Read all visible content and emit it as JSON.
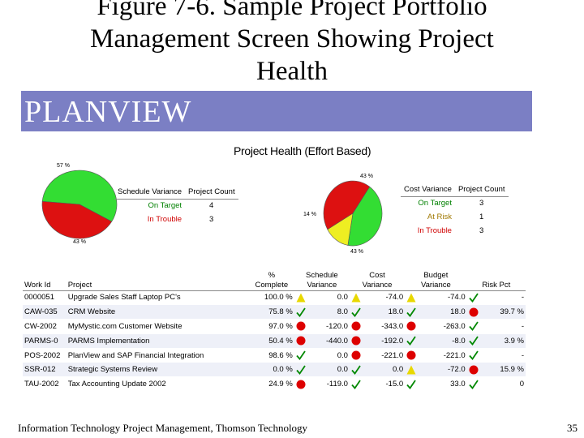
{
  "slide": {
    "title_line1": "Figure 7-6. Sample Project Portfolio",
    "title_line2": "Management Screen Showing Project",
    "title_line3": "Health"
  },
  "banner": {
    "logo_text": "PLANVIEW",
    "color": "#7b7fc4"
  },
  "health": {
    "title": "Project Health (Effort Based)",
    "left_pie": {
      "pct_green": "57 %",
      "pct_red": "43 %",
      "header_variance": "Schedule Variance",
      "header_count": "Project Count",
      "rows": [
        {
          "label": "On Target",
          "count": "4"
        },
        {
          "label": "In Trouble",
          "count": "3"
        }
      ]
    },
    "right_pie": {
      "pct_green": "43 %",
      "pct_yellow": "14 %",
      "pct_red": "43 %",
      "header_variance": "Cost Variance",
      "header_count": "Project Count",
      "rows": [
        {
          "label": "On Target",
          "count": "3"
        },
        {
          "label": "At Risk",
          "count": "1"
        },
        {
          "label": "In Trouble",
          "count": "3"
        }
      ]
    }
  },
  "chart_data": [
    {
      "type": "pie",
      "title": "Schedule Variance",
      "categories": [
        "On Target",
        "In Trouble"
      ],
      "values": [
        57,
        43
      ],
      "colors": [
        "#33dd33",
        "#dd1111"
      ]
    },
    {
      "type": "pie",
      "title": "Cost Variance",
      "categories": [
        "On Target",
        "At Risk",
        "In Trouble"
      ],
      "values": [
        43,
        14,
        43
      ],
      "colors": [
        "#33dd33",
        "#eeee22",
        "#dd1111"
      ]
    }
  ],
  "table": {
    "headers": {
      "work_id": "Work Id",
      "project": "Project",
      "pct_complete_1": "%",
      "pct_complete_2": "Complete",
      "schedule_1": "Schedule",
      "schedule_2": "Variance",
      "cost_1": "Cost",
      "cost_2": "Variance",
      "budget_1": "Budget",
      "budget_2": "Variance",
      "risk": "Risk Pct"
    },
    "rows": [
      {
        "id": "0000051",
        "project": "Upgrade Sales Staff Laptop PC's",
        "complete": "100.0 %",
        "sched_ind": "yellow",
        "sched": "0.0",
        "cost_ind": "yellow",
        "cost": "-74.0",
        "budget_ind": "yellow",
        "budget": "-74.0",
        "risk_ind": "check",
        "risk": "-"
      },
      {
        "id": "CAW-035",
        "project": "CRM Website",
        "complete": "75.8 %",
        "sched_ind": "check",
        "sched": "8.0",
        "cost_ind": "check",
        "cost": "18.0",
        "budget_ind": "check",
        "budget": "18.0",
        "risk_ind": "red",
        "risk": "39.7 %"
      },
      {
        "id": "CW-2002",
        "project": "MyMystic.com Customer Website",
        "complete": "97.0 %",
        "sched_ind": "red",
        "sched": "-120.0",
        "cost_ind": "red",
        "cost": "-343.0",
        "budget_ind": "red",
        "budget": "-263.0",
        "risk_ind": "check",
        "risk": "-"
      },
      {
        "id": "PARMS-0",
        "project": "PARMS Implementation",
        "complete": "50.4 %",
        "sched_ind": "red",
        "sched": "-440.0",
        "cost_ind": "red",
        "cost": "-192.0",
        "budget_ind": "check",
        "budget": "-8.0",
        "risk_ind": "check",
        "risk": "3.9 %"
      },
      {
        "id": "POS-2002",
        "project": "PlanView and SAP Financial Integration",
        "complete": "98.6 %",
        "sched_ind": "check",
        "sched": "0.0",
        "cost_ind": "red",
        "cost": "-221.0",
        "budget_ind": "red",
        "budget": "-221.0",
        "risk_ind": "check",
        "risk": "-"
      },
      {
        "id": "SSR-012",
        "project": "Strategic Systems Review",
        "complete": "0.0 %",
        "sched_ind": "check",
        "sched": "0.0",
        "cost_ind": "check",
        "cost": "0.0",
        "budget_ind": "yellow",
        "budget": "-72.0",
        "risk_ind": "red",
        "risk": "15.9 %"
      },
      {
        "id": "TAU-2002",
        "project": "Tax Accounting Update 2002",
        "complete": "24.9 %",
        "sched_ind": "red",
        "sched": "-119.0",
        "cost_ind": "check",
        "cost": "-15.0",
        "budget_ind": "check",
        "budget": "33.0",
        "risk_ind": "check",
        "risk": "0"
      }
    ]
  },
  "footer": {
    "source": "Information Technology Project Management, Thomson Technology",
    "page": "35"
  }
}
